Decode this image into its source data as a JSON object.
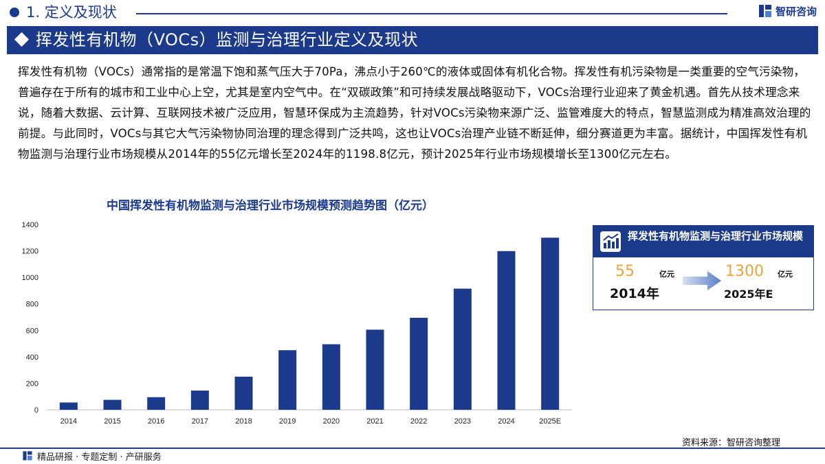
{
  "header": {
    "section_title": "1. 定义及现状",
    "brand_name": "智研咨询",
    "banner_title": "挥发性有机物（VOCs）监测与治理行业定义及现状"
  },
  "intro_paragraph": "挥发性有机物（VOCs）通常指的是常温下饱和蒸气压大于70Pa，沸点小于260℃的液体或固体有机化合物。挥发性有机污染物是一类重要的空气污染物，普遍存在于所有的城市和工业中心上空，尤其是室内空气中。在“双碳政策”和可持续发展战略驱动下，VOCs治理行业迎来了黄金机遇。首先从技术理念来说，随着大数据、云计算、互联网技术被广泛应用，智慧环保成为主流趋势，针对VOCs污染物来源广泛、监管难度大的特点，智慧监测成为精准高效治理的前提。与此同时，VOCs与其它大气污染物协同治理的理念得到广泛共鸣，这也让VOCs治理产业链不断延伸，细分赛道更为丰富。据统计，中国挥发性有机物监测与治理行业市场规模从2014年的55亿元增长至2024年的1198.8亿元，预计2025年行业市场规模增长至1300亿元左右。",
  "chart_data": {
    "type": "bar",
    "title": "中国挥发性有机物监测与治理行业市场规模预测趋势图（亿元）",
    "categories": [
      "2014",
      "2015",
      "2016",
      "2017",
      "2018",
      "2019",
      "2020",
      "2021",
      "2022",
      "2023",
      "2024",
      "2025E"
    ],
    "values": [
      55,
      75,
      95,
      145,
      250,
      450,
      495,
      605,
      695,
      915,
      1198.8,
      1300
    ],
    "ylim": [
      0,
      1400
    ],
    "yticks": [
      0,
      200,
      400,
      600,
      800,
      1000,
      1200,
      1400
    ],
    "grid": false,
    "bar_color": "#1c3a8c"
  },
  "info_card": {
    "title": "挥发性有机物监测与治理行业市场规模",
    "start_value": "55",
    "start_unit": "亿元",
    "start_year": "2014年",
    "end_value": "1300",
    "end_unit": "亿元",
    "end_year": "2025年E"
  },
  "source": "资料来源：智研咨询整理",
  "footer": "精品研报 · 专题定制 · 产研服务",
  "colors": {
    "primary": "#1c3a8c",
    "accent": "#f2a23a"
  }
}
